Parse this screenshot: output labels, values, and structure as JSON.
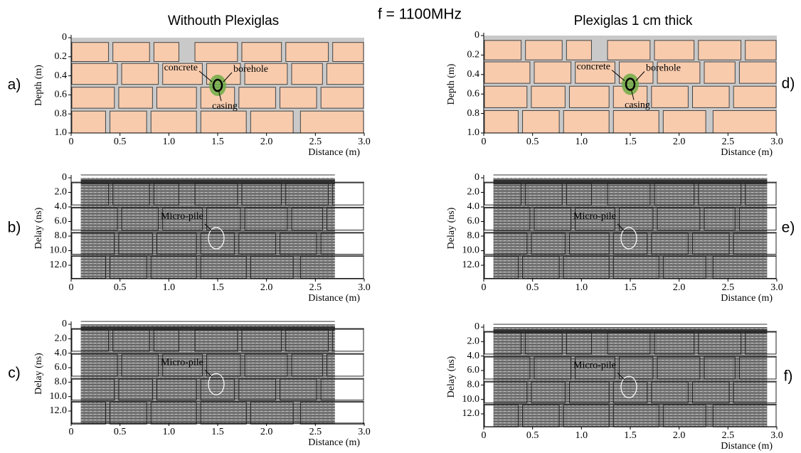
{
  "title": "f = 1100MHz",
  "columns": [
    "Withouth Plexiglas",
    "Plexiglas 1 cm thick"
  ],
  "panels": [
    {
      "label": "a)",
      "y_label": "Depth (m)",
      "x_label": "Distance (m)",
      "yticks": [
        "0",
        "0.2",
        "0.4",
        "0.6",
        "0.8",
        "1.0"
      ],
      "xticks": [
        "0",
        "0.5",
        "1.0",
        "1.5",
        "2.0",
        "2.5",
        "3.0"
      ],
      "annotations": [
        "concrete",
        "borehole",
        "casing"
      ]
    },
    {
      "label": "b)",
      "y_label": "Delay (ns)",
      "x_label": "Distance (m)",
      "yticks": [
        "0",
        "2.0",
        "4.0",
        "6.0",
        "8.0",
        "10.0",
        "12.0"
      ],
      "xticks": [
        "0",
        "0.5",
        "1.0",
        "1.5",
        "2.0",
        "2.5",
        "3.0"
      ],
      "annotations": [
        "Micro-pile"
      ]
    },
    {
      "label": "c)",
      "y_label": "Delay (ns)",
      "x_label": "Distance (m)",
      "yticks": [
        "0",
        "2.0",
        "4.0",
        "6.0",
        "8.0",
        "10.0",
        "12.0"
      ],
      "xticks": [
        "0",
        "0.5",
        "1.0",
        "1.5",
        "2.0",
        "2.5",
        "3.0"
      ],
      "annotations": [
        "Micro-pile"
      ]
    },
    {
      "label": "d)",
      "y_label": "Depth (m)",
      "x_label": "Distance (m)",
      "yticks": [
        "0",
        "0.2",
        "0.4",
        "0.6",
        "0.8",
        "1.0"
      ],
      "xticks": [
        "0",
        "0.5",
        "1.0",
        "1.5",
        "2.0",
        "2.5",
        "3.0"
      ],
      "annotations": [
        "concrete",
        "borehole",
        "casing"
      ]
    },
    {
      "label": "e)",
      "y_label": "Delay (ns)",
      "x_label": "Distance (m)",
      "yticks": [
        "0",
        "2.0",
        "4.0",
        "6.0",
        "8.0",
        "10.0",
        "12.0"
      ],
      "xticks": [
        "0",
        "0.5",
        "1.0",
        "1.5",
        "2.0",
        "2.5",
        "3.0"
      ],
      "annotations": [
        "Micro-pile"
      ]
    },
    {
      "label": "f)",
      "y_label": "Delay (ns)",
      "x_label": "Distance (m)",
      "yticks": [
        "0",
        "2.0",
        "4.0",
        "6.0",
        "8.0",
        "10.0",
        "12.0"
      ],
      "xticks": [
        "0",
        "0.5",
        "1.0",
        "1.5",
        "2.0",
        "2.5",
        "3.0"
      ],
      "annotations": [
        "Micro-pile"
      ]
    }
  ]
}
